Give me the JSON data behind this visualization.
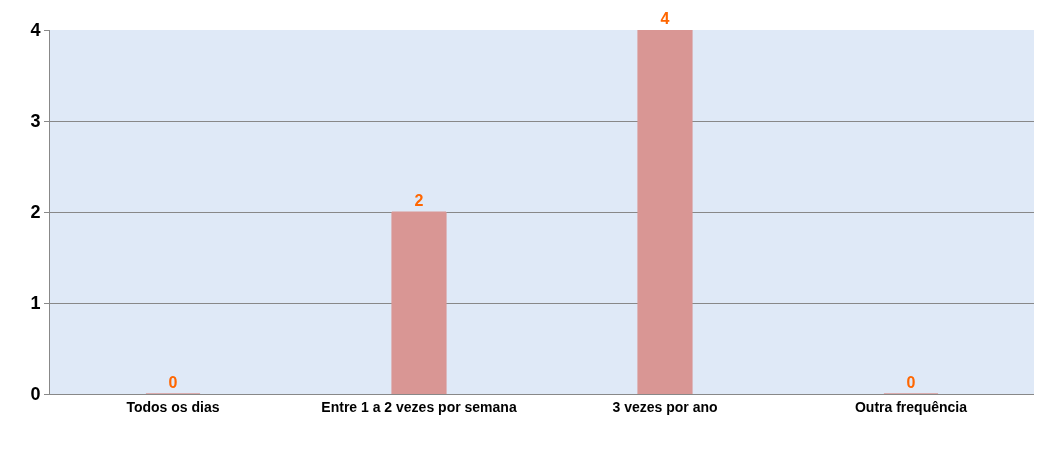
{
  "chart_data": {
    "type": "bar",
    "categories": [
      "Todos os dias",
      "Entre 1 a 2 vezes por semana",
      "3 vezes por ano",
      "Outra frequência"
    ],
    "values": [
      0,
      2,
      4,
      0
    ],
    "color": "#d99694",
    "data_labels": true,
    "ylim": [
      0,
      4
    ],
    "yticks": [
      0,
      1,
      2,
      3,
      4
    ],
    "grid": "y"
  }
}
